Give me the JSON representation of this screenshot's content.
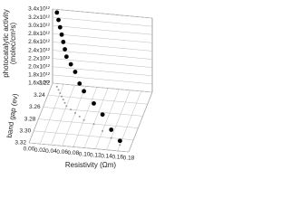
{
  "chart_data": {
    "type": "scatter3d",
    "zlabel": [
      "photocatalytic activity",
      "(molec/cm²s)"
    ],
    "ylabel": "band gap (ev)",
    "xlabel": "Resistivity (Ωm)",
    "xlim": [
      0,
      0.18
    ],
    "xticks": [
      {
        "value": 0,
        "label": "0.00"
      },
      0.02,
      0.04,
      0.06,
      0.08,
      {
        "value": 0.1,
        "label": "0.10"
      },
      0.12,
      0.14,
      0.16,
      0.18
    ],
    "ylim": [
      3.22,
      3.32
    ],
    "yticks": [
      3.22,
      3.24,
      3.26,
      3.28,
      {
        "value": 3.3,
        "label": "3.30"
      },
      3.32
    ],
    "zlim": [
      1600000000000.0,
      3400000000000.0
    ],
    "zticks": [
      {
        "value": 1600000000000.0,
        "label": "1.6x10¹²"
      },
      {
        "value": 1800000000000.0,
        "label": "1.8x10¹²"
      },
      {
        "value": 2000000000000.0,
        "label": "2.0x10¹²"
      },
      {
        "value": 2200000000000.0,
        "label": "2.2x10¹²"
      },
      {
        "value": 2400000000000.0,
        "label": "2.4x10¹²"
      },
      {
        "value": 2600000000000.0,
        "label": "2.6x10¹²"
      },
      {
        "value": 2800000000000.0,
        "label": "2.8x10¹²"
      },
      {
        "value": 3000000000000.0,
        "label": "3.0x10¹²"
      },
      {
        "value": 3200000000000.0,
        "label": "3.2x10¹²"
      },
      {
        "value": 3400000000000.0,
        "label": "3.4x10¹²"
      }
    ],
    "series": [
      {
        "color": "#000000",
        "shadow_color": "#999999",
        "x": [
          0.01,
          0.015,
          0.02,
          0.025,
          0.03,
          0.035,
          0.04,
          0.05,
          0.06,
          0.07,
          0.08,
          0.1,
          0.12,
          0.14,
          0.16
        ],
        "y": [
          3.225,
          3.23,
          3.235,
          3.24,
          3.245,
          3.25,
          3.255,
          3.26,
          3.265,
          3.27,
          3.275,
          3.28,
          3.29,
          3.3,
          3.31
        ],
        "z": [
          3400000000000.0,
          3300000000000.0,
          3200000000000.0,
          3100000000000.0,
          3000000000000.0,
          2900000000000.0,
          2800000000000.0,
          2700000000000.0,
          2600000000000.0,
          2400000000000.0,
          2300000000000.0,
          2100000000000.0,
          2000000000000.0,
          1800000000000.0,
          1700000000000.0
        ]
      }
    ],
    "grid": true
  }
}
